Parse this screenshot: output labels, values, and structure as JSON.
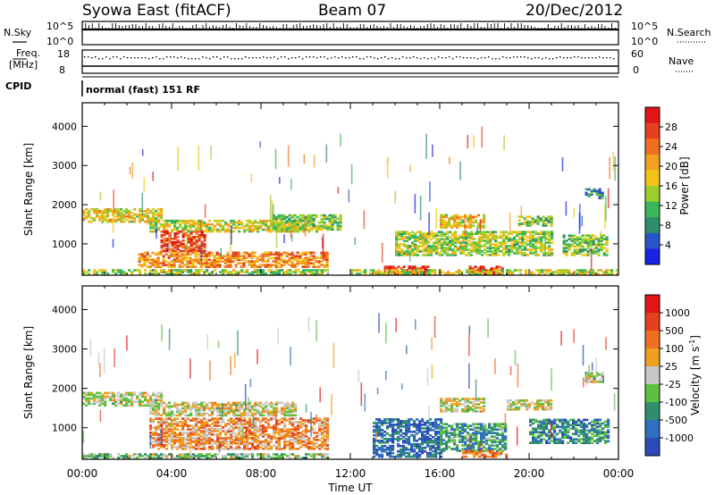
{
  "header": {
    "station": "Syowa East (fitACF)",
    "beam": "Beam 07",
    "date": "20/Dec/2012"
  },
  "status_panels": {
    "nsky_label": "N.Sky",
    "nsky_ticks": [
      "10^5",
      "10^0"
    ],
    "nsearch_label": "N.Search",
    "nsearch_ticks": [
      "10^5",
      "10^0"
    ],
    "freq_label": "Freq.",
    "freq_unit": "[MHz]",
    "freq_ticks": [
      18,
      8
    ],
    "nave_label": "Nave",
    "nave_ticks": [
      60,
      0
    ],
    "cpid_label": "CPID",
    "cpid_value": "normal (fast) 151 RF"
  },
  "chart_data": [
    {
      "type": "heatmap",
      "name": "power",
      "ylabel": "Slant Range [km]",
      "ylim": [
        200,
        4600
      ],
      "yticks": [
        1000,
        2000,
        3000,
        4000
      ],
      "xlim": [
        0,
        24
      ],
      "colorbar": {
        "label": "Power [dB]",
        "ticks": [
          4,
          8,
          12,
          16,
          20,
          24,
          28
        ],
        "colors": [
          "#1a22e6",
          "#2a55c8",
          "#2f8f6a",
          "#3cb85a",
          "#9bd02a",
          "#f2c418",
          "#f2a020",
          "#ee7020",
          "#e64020",
          "#e01515"
        ]
      },
      "bands": [
        {
          "t0": 0.0,
          "t1": 3.5,
          "r0": 1550,
          "r1": 1900,
          "level": 0.55
        },
        {
          "t0": 3.0,
          "t1": 10.5,
          "r0": 1300,
          "r1": 1600,
          "level": 0.5
        },
        {
          "t0": 3.5,
          "t1": 5.5,
          "r0": 800,
          "r1": 1300,
          "level": 0.85
        },
        {
          "t0": 2.5,
          "t1": 11.0,
          "r0": 400,
          "r1": 800,
          "level": 0.7
        },
        {
          "t0": 0.0,
          "t1": 11.0,
          "r0": 220,
          "r1": 350,
          "level": 0.45
        },
        {
          "t0": 8.5,
          "t1": 11.5,
          "r0": 1350,
          "r1": 1750,
          "level": 0.4
        },
        {
          "t0": 13.5,
          "t1": 15.5,
          "r0": 220,
          "r1": 420,
          "level": 0.95
        },
        {
          "t0": 17.3,
          "t1": 18.8,
          "r0": 220,
          "r1": 420,
          "level": 0.9
        },
        {
          "t0": 12.0,
          "t1": 24.0,
          "r0": 220,
          "r1": 350,
          "level": 0.5
        },
        {
          "t0": 16.0,
          "t1": 18.0,
          "r0": 1400,
          "r1": 1750,
          "level": 0.55
        },
        {
          "t0": 14.0,
          "t1": 21.0,
          "r0": 700,
          "r1": 1300,
          "level": 0.45
        },
        {
          "t0": 19.5,
          "t1": 21.0,
          "r0": 1450,
          "r1": 1700,
          "level": 0.4
        },
        {
          "t0": 21.5,
          "t1": 23.5,
          "r0": 700,
          "r1": 1200,
          "level": 0.4
        },
        {
          "t0": 22.5,
          "t1": 23.3,
          "r0": 2150,
          "r1": 2400,
          "level": 0.3
        }
      ]
    },
    {
      "type": "heatmap",
      "name": "velocity",
      "ylabel": "Slant Range [km]",
      "xlabel": "Time UT",
      "ylim": [
        200,
        4600
      ],
      "yticks": [
        1000,
        2000,
        3000,
        4000
      ],
      "xlim": [
        0,
        24
      ],
      "xticks": [
        "00:00",
        "04:00",
        "08:00",
        "12:00",
        "16:00",
        "20:00",
        "00:00"
      ],
      "colorbar": {
        "label": "Velocity [m s",
        "label_sup": "-1",
        "label_end": "]",
        "ticks": [
          1000,
          500,
          100,
          25,
          -25,
          -100,
          -500,
          -1000
        ],
        "colors": [
          "#2a4bb8",
          "#3070c0",
          "#2f8f6a",
          "#5cc040",
          "#c8c8c8",
          "#f0a020",
          "#ee7020",
          "#e64020",
          "#e01515"
        ]
      },
      "bands": [
        {
          "t0": 0.0,
          "t1": 3.5,
          "r0": 1550,
          "r1": 1900,
          "level": 0.5
        },
        {
          "t0": 3.0,
          "t1": 9.5,
          "r0": 1300,
          "r1": 1650,
          "level": 0.5
        },
        {
          "t0": 3.0,
          "t1": 11.0,
          "r0": 450,
          "r1": 1250,
          "level": 0.65
        },
        {
          "t0": 0.0,
          "t1": 11.0,
          "r0": 220,
          "r1": 350,
          "level": 0.4
        },
        {
          "t0": 13.0,
          "t1": 16.0,
          "r0": 250,
          "r1": 1200,
          "level": 0.15
        },
        {
          "t0": 16.0,
          "t1": 19.0,
          "r0": 400,
          "r1": 1100,
          "level": 0.3
        },
        {
          "t0": 16.0,
          "t1": 18.0,
          "r0": 1400,
          "r1": 1750,
          "level": 0.5
        },
        {
          "t0": 17.0,
          "t1": 19.0,
          "r0": 250,
          "r1": 420,
          "level": 0.7
        },
        {
          "t0": 19.0,
          "t1": 21.0,
          "r0": 1450,
          "r1": 1700,
          "level": 0.5
        },
        {
          "t0": 20.0,
          "t1": 23.5,
          "r0": 600,
          "r1": 1200,
          "level": 0.25
        },
        {
          "t0": 22.5,
          "t1": 23.3,
          "r0": 2150,
          "r1": 2400,
          "level": 0.5
        }
      ]
    }
  ]
}
